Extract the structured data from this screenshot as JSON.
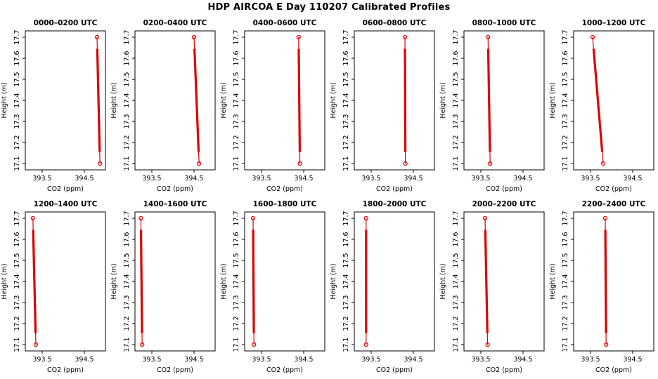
{
  "title": "HDP AIRCOA E  Day 110207  Calibrated Profiles",
  "chart_data": {
    "type": "line",
    "title": "HDP AIRCOA E  Day 110207  Calibrated Profiles",
    "xlabel": "CO2 (ppm)",
    "ylabel": "Height (m)",
    "xlim": [
      393.1,
      395.0
    ],
    "ylim": [
      17.07,
      17.73
    ],
    "x_ticks": [
      393.5,
      394.5
    ],
    "y_ticks": [
      17.1,
      17.2,
      17.3,
      17.4,
      17.5,
      17.6,
      17.7
    ],
    "grid": false,
    "legend": false,
    "line_color": "#dd0000",
    "marker": "open-circle",
    "panels": [
      {
        "title": "0000–0200 UTC",
        "profile": [
          {
            "height": 17.7,
            "co2": 394.8
          },
          {
            "height": 17.1,
            "co2": 394.87
          }
        ]
      },
      {
        "title": "0200–0400 UTC",
        "profile": [
          {
            "height": 17.7,
            "co2": 394.5
          },
          {
            "height": 17.1,
            "co2": 394.62
          }
        ]
      },
      {
        "title": "0400–0600 UTC",
        "profile": [
          {
            "height": 17.7,
            "co2": 394.38
          },
          {
            "height": 17.1,
            "co2": 394.41
          }
        ]
      },
      {
        "title": "0600–0800 UTC",
        "profile": [
          {
            "height": 17.7,
            "co2": 394.3
          },
          {
            "height": 17.1,
            "co2": 394.31
          }
        ]
      },
      {
        "title": "0800–1000 UTC",
        "profile": [
          {
            "height": 17.7,
            "co2": 393.67
          },
          {
            "height": 17.1,
            "co2": 393.72
          }
        ]
      },
      {
        "title": "1000–1200 UTC",
        "profile": [
          {
            "height": 17.7,
            "co2": 393.55
          },
          {
            "height": 17.1,
            "co2": 393.8
          }
        ]
      },
      {
        "title": "1200–1400 UTC",
        "profile": [
          {
            "height": 17.7,
            "co2": 393.28
          },
          {
            "height": 17.1,
            "co2": 393.35
          }
        ]
      },
      {
        "title": "1400–1600 UTC",
        "profile": [
          {
            "height": 17.7,
            "co2": 393.24
          },
          {
            "height": 17.1,
            "co2": 393.27
          }
        ]
      },
      {
        "title": "1600–1800 UTC",
        "profile": [
          {
            "height": 17.7,
            "co2": 393.3
          },
          {
            "height": 17.1,
            "co2": 393.32
          }
        ]
      },
      {
        "title": "1800–2000 UTC",
        "profile": [
          {
            "height": 17.7,
            "co2": 393.38
          },
          {
            "height": 17.1,
            "co2": 393.38
          }
        ]
      },
      {
        "title": "2000–2200 UTC",
        "profile": [
          {
            "height": 17.7,
            "co2": 393.6
          },
          {
            "height": 17.1,
            "co2": 393.66
          }
        ]
      },
      {
        "title": "2200–2400 UTC",
        "profile": [
          {
            "height": 17.7,
            "co2": 393.85
          },
          {
            "height": 17.1,
            "co2": 393.87
          }
        ]
      }
    ]
  }
}
